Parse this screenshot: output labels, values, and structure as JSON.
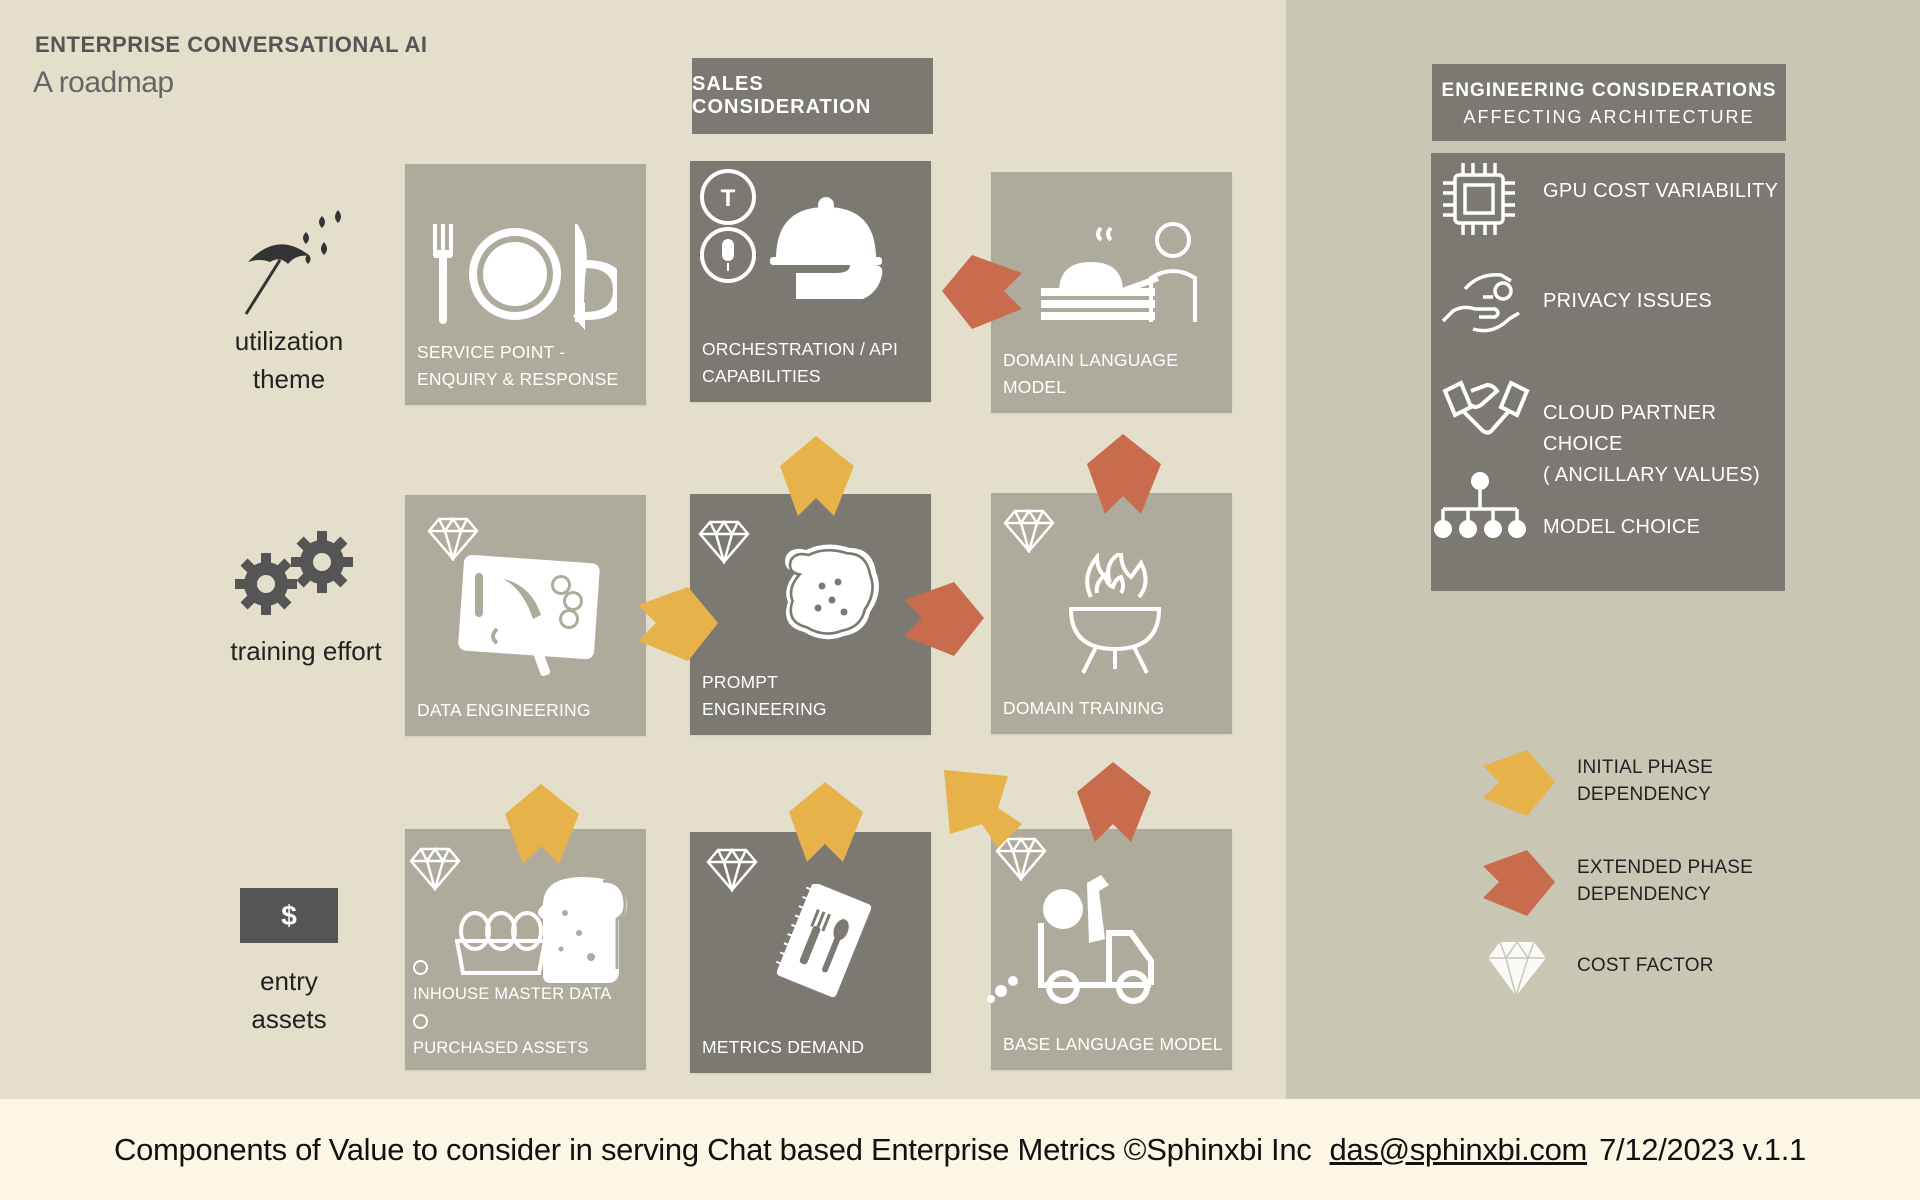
{
  "header": {
    "title": "ENTERPRISE CONVERSATIONAL AI",
    "subtitle": "A roadmap"
  },
  "sales_header": "SALES CONSIDERATION",
  "rows": {
    "utilization": [
      "utilization",
      "theme"
    ],
    "training": [
      "training effort"
    ],
    "entry": [
      "entry",
      "assets"
    ],
    "dollar": "$"
  },
  "boxes": {
    "service_point": [
      "SERVICE  POINT -",
      "ENQUIRY & RESPONSE"
    ],
    "orchestration": [
      "ORCHESTRATION / API",
      "CAPABILITIES"
    ],
    "domain_language_model": [
      "DOMAIN LANGUAGE",
      "MODEL"
    ],
    "data_engineering": [
      "DATA ENGINEERING"
    ],
    "prompt_engineering": [
      "PROMPT",
      "ENGINEERING"
    ],
    "domain_training": [
      "DOMAIN TRAINING"
    ],
    "inhouse": [
      "INHOUSE MASTER DATA",
      "PURCHASED ASSETS"
    ],
    "metrics_demand": [
      "METRICS DEMAND"
    ],
    "base_language_model": [
      "BASE LANGUAGE MODEL"
    ]
  },
  "engineering": {
    "title": "ENGINEERING CONSIDERATIONS",
    "subtitle": "AFFECTING ARCHITECTURE",
    "items": [
      {
        "icon": "cpu-chip-icon",
        "lines": [
          "GPU COST VARIABILITY"
        ]
      },
      {
        "icon": "hand-key-icon",
        "lines": [
          "PRIVACY ISSUES"
        ]
      },
      {
        "icon": "handshake-icon",
        "lines": [
          "CLOUD PARTNER CHOICE",
          "( ANCILLARY VALUES)"
        ]
      },
      {
        "icon": "org-tree-icon",
        "lines": [
          "MODEL CHOICE"
        ]
      }
    ]
  },
  "legend": [
    {
      "icon": "yellow-arrow-icon",
      "lines": [
        "INITIAL PHASE",
        "DEPENDENCY"
      ]
    },
    {
      "icon": "orange-arrow-icon",
      "lines": [
        "EXTENDED PHASE",
        "DEPENDENCY"
      ]
    },
    {
      "icon": "diamond-icon",
      "lines": [
        "COST FACTOR"
      ]
    }
  ],
  "footer": {
    "text": "Components of Value to consider in serving Chat based Enterprise Metrics ©Sphinxbi Inc",
    "email": "das@sphinxbi.com",
    "version": "7/12/2023 v.1.1"
  },
  "colors": {
    "background": "#e3dfcb",
    "right_panel": "#c9c6b4",
    "box_light": "#aeab9c",
    "box_dark": "#7b7971",
    "initial_arrow": "#e8b24a",
    "extended_arrow": "#c96c4e",
    "footer": "#fcf7e4"
  }
}
